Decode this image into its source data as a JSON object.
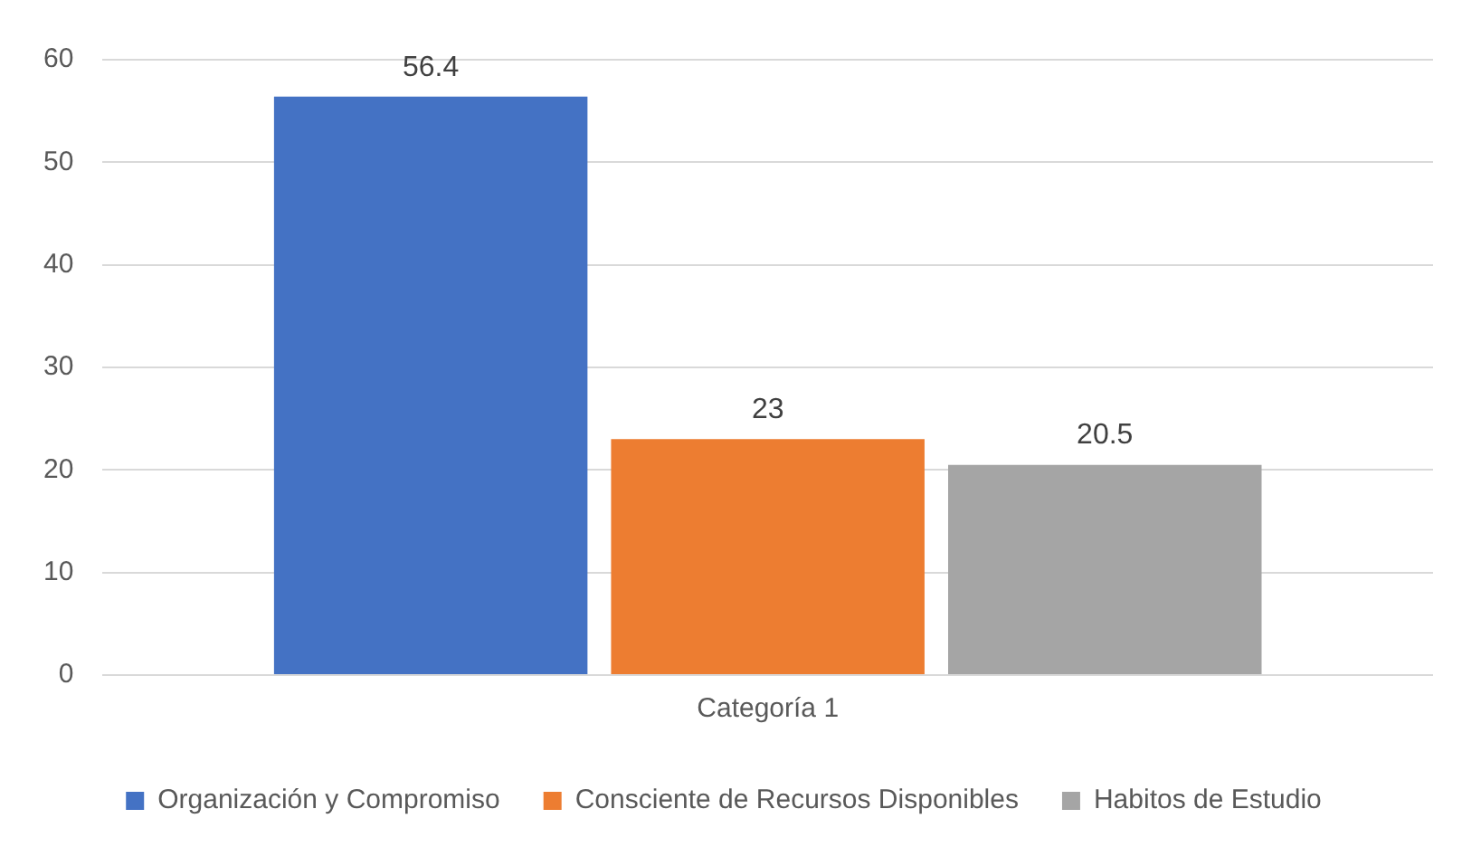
{
  "chart_data": {
    "type": "bar",
    "categories": [
      "Categoría 1"
    ],
    "series": [
      {
        "name": "Organización y Compromiso",
        "color": "#4472c4",
        "values": [
          56.4
        ]
      },
      {
        "name": "Consciente de Recursos Disponibles",
        "color": "#ed7d31",
        "values": [
          23
        ]
      },
      {
        "name": "Habitos de Estudio",
        "color": "#a5a5a5",
        "values": [
          20.5
        ]
      }
    ],
    "ylim": [
      0,
      60
    ],
    "yticks": [
      0,
      10,
      20,
      30,
      40,
      50,
      60
    ],
    "grid": "y",
    "legend": "bottom",
    "data_labels": true
  }
}
